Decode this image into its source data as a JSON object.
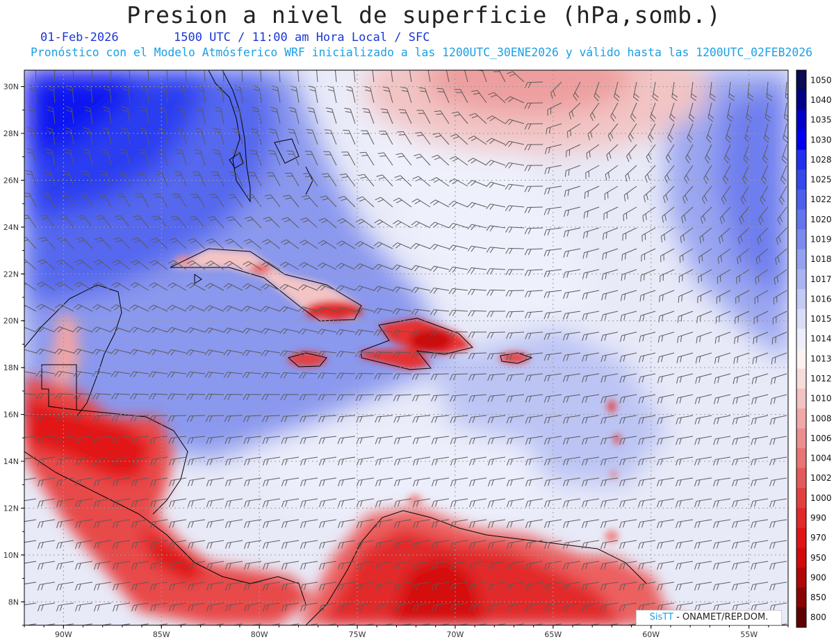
{
  "header": {
    "title": "Presion a nivel de superficie (hPa,somb.)",
    "date": "01-Feb-2026",
    "time": "1500 UTC / 11:00 am Hora Local / SFC",
    "description": "Pronóstico con el Modelo Atmósferico WRF inicializado a las 1200UTC_30ENE2026 y válido hasta las  1200UTC_02FEB2026"
  },
  "axes": {
    "lon_labels": [
      "90W",
      "85W",
      "80W",
      "75W",
      "70W",
      "65W",
      "60W",
      "55W"
    ],
    "lat_labels": [
      "30N",
      "28N",
      "26N",
      "24N",
      "22N",
      "20N",
      "18N",
      "16N",
      "14N",
      "12N",
      "10N",
      "8N"
    ],
    "lon_values": [
      -90,
      -85,
      -80,
      -75,
      -70,
      -65,
      -60,
      -55
    ],
    "lat_values": [
      30,
      28,
      26,
      24,
      22,
      20,
      18,
      16,
      14,
      12,
      10,
      8
    ],
    "lon_range": [
      -92,
      -53
    ],
    "lat_range": [
      7,
      30.7
    ]
  },
  "colorbar": {
    "levels": [
      "1050",
      "1040",
      "1035",
      "1030",
      "1028",
      "1025",
      "1022",
      "1020",
      "1019",
      "1018",
      "1017",
      "1016",
      "1015",
      "1014",
      "1013",
      "1012",
      "1010",
      "1008",
      "1006",
      "1004",
      "1002",
      "1000",
      "990",
      "970",
      "950",
      "900",
      "850",
      "800"
    ],
    "colors": [
      "#0a0a55",
      "#000088",
      "#0000c8",
      "#0000f0",
      "#2030f0",
      "#3448ee",
      "#4c60ee",
      "#6274ee",
      "#7a8aef",
      "#94a0f0",
      "#aab4f2",
      "#c2caf6",
      "#d8ddf8",
      "#eceefc",
      "#fcf2f2",
      "#f8dcdc",
      "#f4c2c2",
      "#f0a8a8",
      "#ec8e8e",
      "#e87474",
      "#e45a5a",
      "#e24040",
      "#e22828",
      "#e01414",
      "#d20a0a",
      "#b00606",
      "#8a0404",
      "#600000"
    ]
  },
  "credit": {
    "brand": "SisTT",
    "text": "- ONAMET/REP.DOM."
  }
}
